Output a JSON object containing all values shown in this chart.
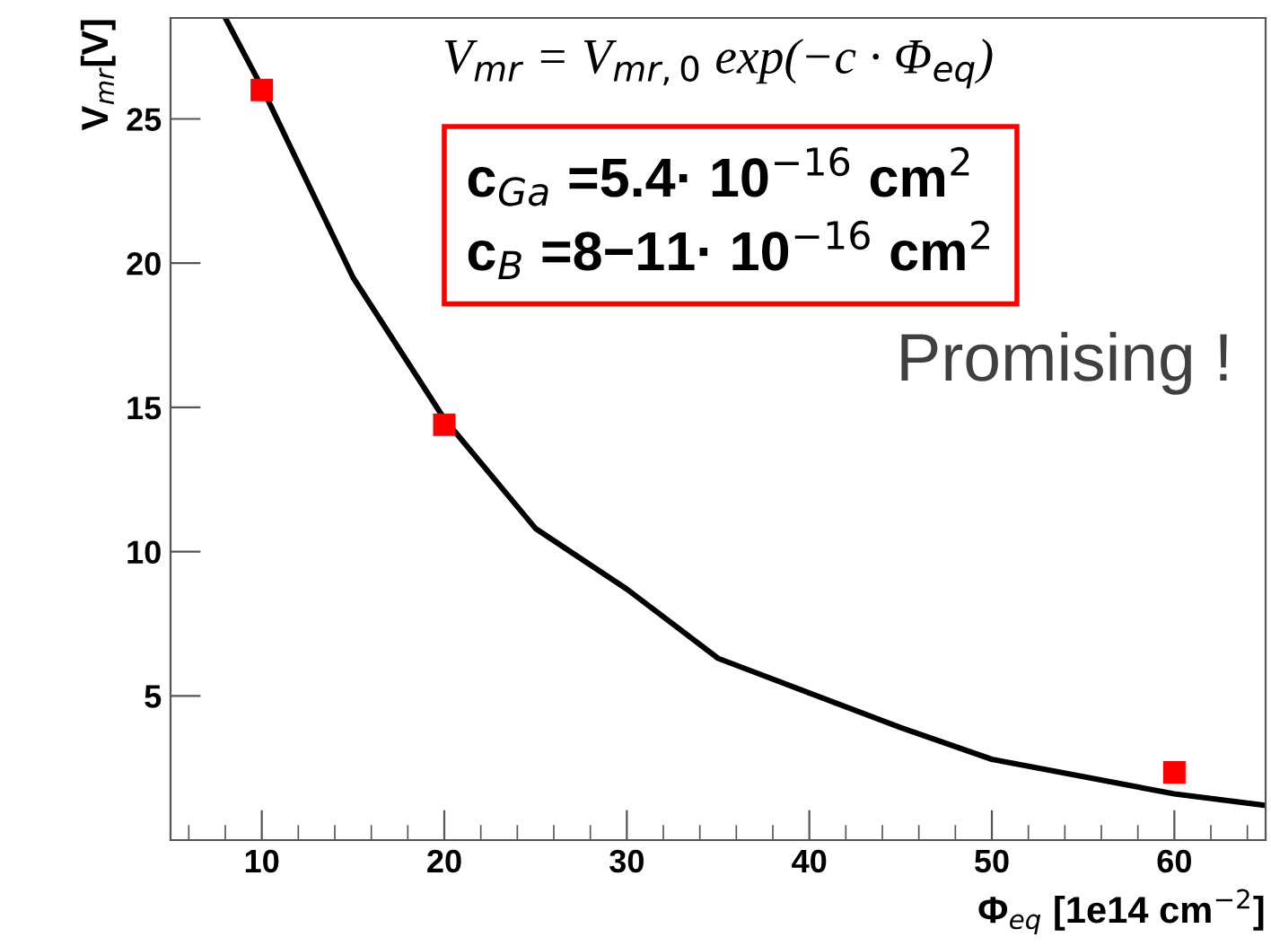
{
  "chart_data": {
    "type": "scatter",
    "xlabel": "Φ$_{eq}$ [1e14 cm$^{−2}$]",
    "ylabel": "V$_{mr}$[V]",
    "xlim": [
      5,
      65
    ],
    "xticks": [
      10,
      20,
      30,
      40,
      50,
      60
    ],
    "ylim": [
      0,
      28.5
    ],
    "yticks": [
      5,
      10,
      15,
      20,
      25
    ],
    "grid": false,
    "legend": false,
    "marker": "square",
    "series": [
      {
        "color": "#ff0000",
        "x": [
          10,
          20,
          60
        ],
        "values": [
          26.0,
          14.4,
          2.35
        ]
      },
      {
        "type": "line",
        "color": "#000000",
        "line_style": "solid",
        "marker": "none",
        "x": [
          8,
          10,
          15,
          20,
          25,
          30,
          35,
          40,
          45,
          50,
          55,
          60,
          65
        ],
        "values": [
          28.5,
          26.1,
          19.5,
          14.6,
          10.8,
          8.7,
          6.3,
          5.1,
          3.9,
          2.8,
          2.2,
          1.6,
          1.2
        ]
      }
    ],
    "annotations": [
      "V$_{mr}$ = V$_{mr,0}$ exp(−c · Φ$_{eq}$)",
      "c$_{Ga}$ =5.4· 10$^{−16}$ cm$^{2}$\nc$_{B}$ =8−11· 10$^{−16}$ cm$^{2}$",
      "Promising !"
    ]
  }
}
